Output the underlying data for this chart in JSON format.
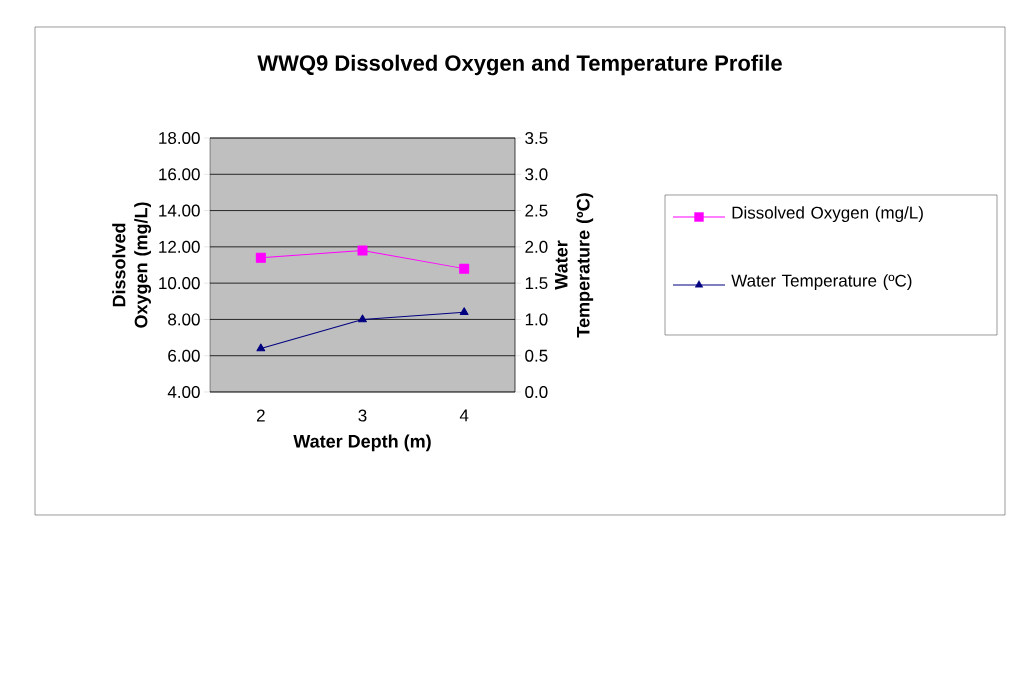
{
  "chart_data": {
    "type": "line",
    "title": "WWQ9 Dissolved Oxygen and Temperature Profile",
    "xlabel": "Water Depth (m)",
    "ylabel": "Dissolved Oxygen (mg/L)",
    "y2label": "Water Temperature (ºC)",
    "categories": [
      "2",
      "3",
      "4"
    ],
    "series": [
      {
        "name": "Dissolved Oxygen (mg/L)",
        "color": "#ff00ff",
        "values": [
          11.4,
          11.8,
          10.8
        ],
        "marker": "square"
      },
      {
        "name": "Water Temperature (ºC)",
        "color": "#000080",
        "values": [
          0.6,
          1.0,
          1.1
        ],
        "marker": "triangle",
        "axis": "y2"
      }
    ],
    "ylim": [
      4,
      18
    ],
    "yticks": [
      {
        "value": 4,
        "label": "4.00"
      },
      {
        "value": 6,
        "label": "6.00"
      },
      {
        "value": 8,
        "label": "8.00"
      },
      {
        "value": 10,
        "label": "10.00"
      },
      {
        "value": 12,
        "label": "12.00"
      },
      {
        "value": 14,
        "label": "14.00"
      },
      {
        "value": 16,
        "label": "16.00"
      },
      {
        "value": 18,
        "label": "18.00"
      }
    ],
    "y2lim": [
      0,
      3.5
    ],
    "y2ticks": [
      {
        "value": 0,
        "label": "0.0"
      },
      {
        "value": 0.5,
        "label": "0.5"
      },
      {
        "value": 1,
        "label": "1.0"
      },
      {
        "value": 1.5,
        "label": "1.5"
      },
      {
        "value": 2,
        "label": "2.0"
      },
      {
        "value": 2.5,
        "label": "2.5"
      },
      {
        "value": 3,
        "label": "3.0"
      },
      {
        "value": 3.5,
        "label": "3.5"
      }
    ],
    "grid": "y",
    "legend": "right",
    "line_style": "solid"
  }
}
